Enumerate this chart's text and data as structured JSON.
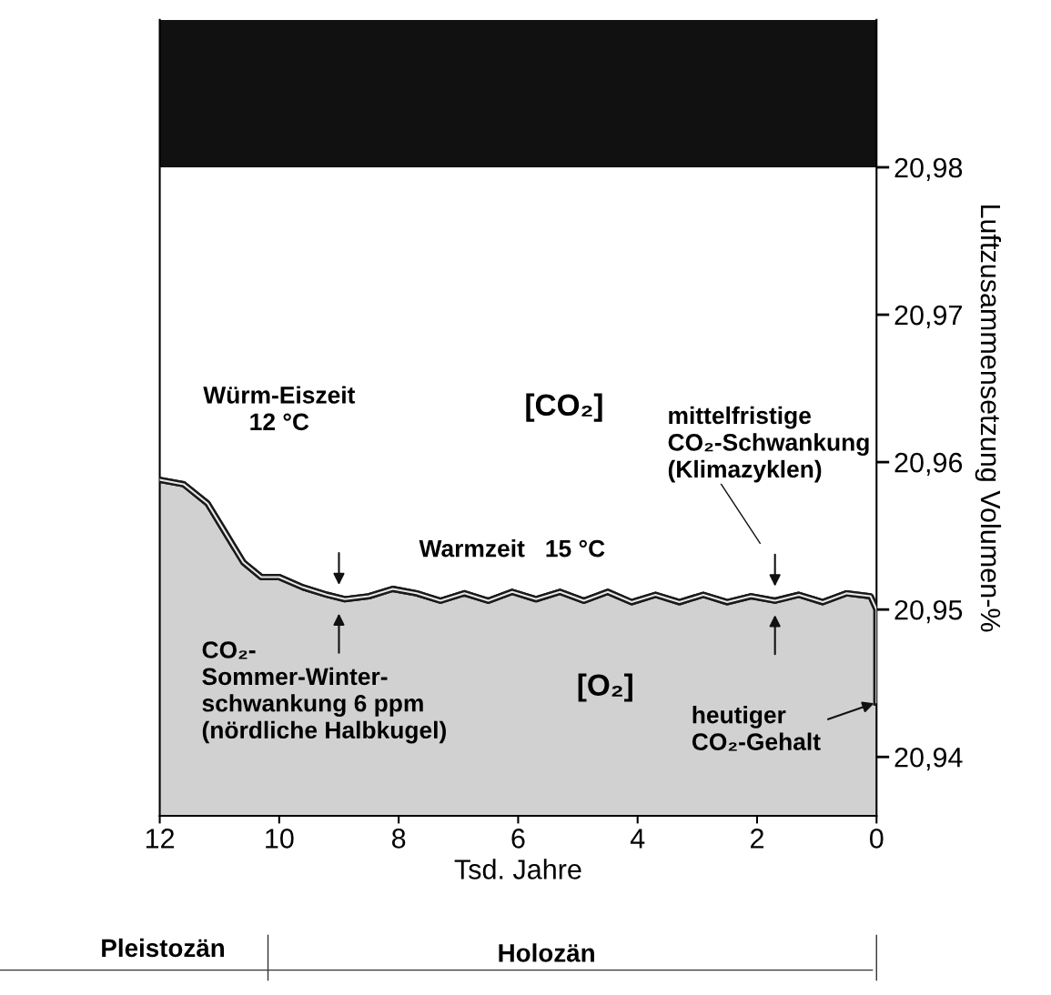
{
  "chart_data": {
    "type": "area",
    "xlabel": "Tsd. Jahre",
    "ylabel": "Luftzusammensetzung Volumen-%",
    "xlim": [
      12,
      0
    ],
    "xticks": [
      12,
      10,
      8,
      6,
      4,
      2,
      0
    ],
    "ylim": [
      20.936,
      20.99
    ],
    "yticks": [
      {
        "value": 20.94,
        "label": "20,94"
      },
      {
        "value": 20.95,
        "label": "20,95"
      },
      {
        "value": 20.96,
        "label": "20,96"
      },
      {
        "value": 20.97,
        "label": "20,97"
      },
      {
        "value": 20.98,
        "label": "20,98"
      }
    ],
    "series": [
      {
        "color": "#1a1a1a",
        "x": [
          12,
          11.6,
          11.2,
          10.9,
          10.6,
          10.3,
          10.0,
          9.6,
          9.2,
          8.9,
          8.5,
          8.1,
          7.7,
          7.3,
          6.9,
          6.5,
          6.1,
          5.7,
          5.3,
          4.9,
          4.5,
          4.1,
          3.7,
          3.3,
          2.9,
          2.5,
          2.1,
          1.7,
          1.3,
          0.9,
          0.5,
          0.1,
          0,
          0
        ],
        "values": [
          20.9588,
          20.9585,
          20.9572,
          20.9552,
          20.9532,
          20.9522,
          20.9522,
          20.9515,
          20.951,
          20.9507,
          20.9509,
          20.9514,
          20.9511,
          20.9506,
          20.9511,
          20.9506,
          20.9512,
          20.9507,
          20.9512,
          20.9506,
          20.9512,
          20.9505,
          20.951,
          20.9505,
          20.951,
          20.9505,
          20.9509,
          20.9506,
          20.951,
          20.9505,
          20.9511,
          20.9509,
          20.95,
          20.9437
        ]
      }
    ],
    "bands": [
      {
        "axis": "y",
        "from": 20.98,
        "to": 20.99,
        "color": "#111111"
      }
    ],
    "annotations": [
      "[CO₂]",
      "Würm-Eiszeit\n12 °C",
      "Warmzeit   15 °C",
      "mittelfristige\nCO₂-Schwankung\n(Klimazyklen)",
      {
        "text": "CO₂-\nSommer-Winter-\nschwankung 6 ppm\n(nördliche Halbkugel)",
        "x": 9,
        "y": 20.9507
      },
      "[O₂]",
      {
        "text": "heutiger\nCO₂-Gehalt",
        "x": 0,
        "y": 20.9437
      },
      "Pleistozän",
      "Holozän"
    ],
    "grid": false,
    "legend": false
  }
}
